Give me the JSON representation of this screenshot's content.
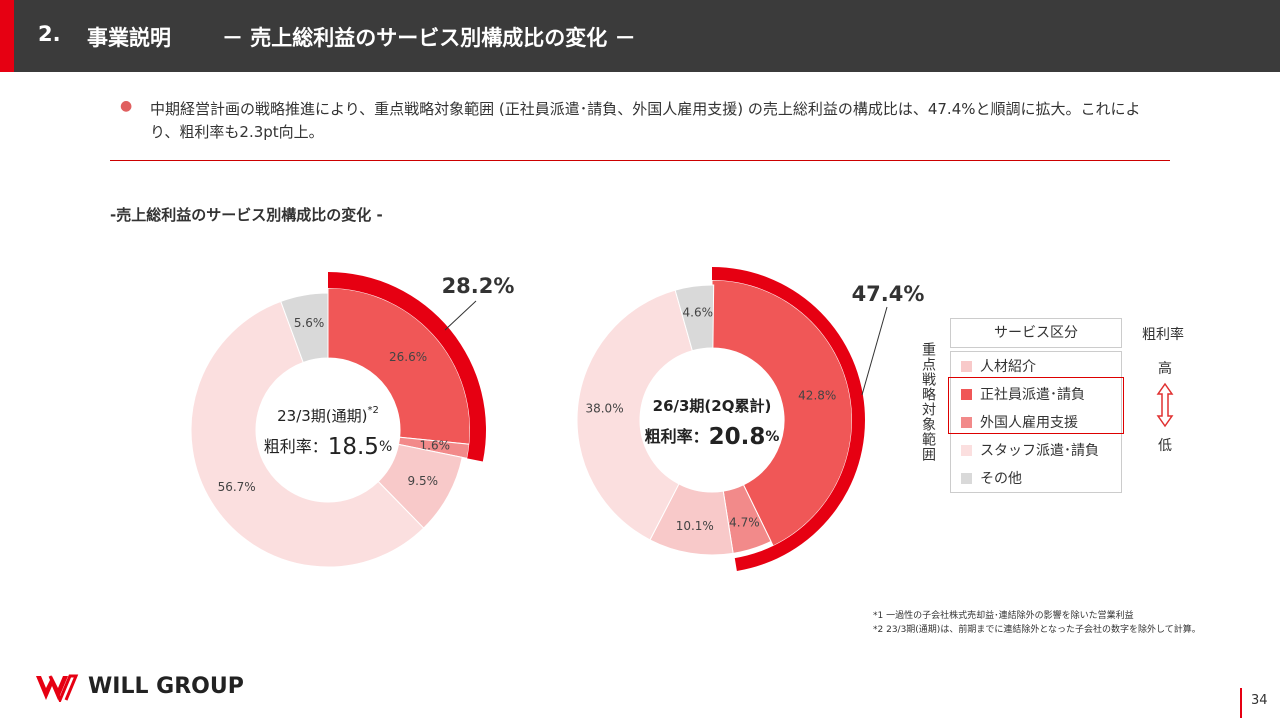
{
  "header": {
    "number": "2.",
    "title": "事業説明",
    "subtitle": "－ 売上総利益のサービス別構成比の変化 －"
  },
  "bullet": "中期経営計画の戦略推進により、重点戦略対象範囲 (正社員派遣･請負、外国人雇用支援) の売上総利益の構成比は、47.4%と順調に拡大。これにより、粗利率も2.3pt向上。",
  "section_title": "-売上総利益のサービス別構成比の変化 -",
  "chart_data": [
    {
      "type": "donut",
      "period": "23/3期(通期)",
      "period_note": "*2",
      "margin_label": "粗利率：",
      "margin_value": "18.5",
      "margin_unit": "%",
      "values": [
        26.6,
        1.6,
        9.5,
        56.7,
        5.6
      ],
      "value_labels": [
        "26.6%",
        "1.6%",
        "9.5%",
        "56.7%",
        "5.6%"
      ],
      "colors": [
        "#f05757",
        "#f28a8a",
        "#f8c9c9",
        "#fbdfdf",
        "#d9d9d9"
      ],
      "focus_total": 28.2,
      "focus_label": "28.2%",
      "focus_color": "#e60012"
    },
    {
      "type": "donut",
      "period": "26/3期(2Q累計)",
      "margin_label": "粗利率：",
      "margin_value": "20.8",
      "margin_unit": "%",
      "values": [
        42.8,
        4.7,
        10.1,
        38.0,
        4.6
      ],
      "value_labels": [
        "42.8%",
        "4.7%",
        "10.1%",
        "38.0%",
        "4.6%"
      ],
      "colors": [
        "#f05757",
        "#f28a8a",
        "#f8c9c9",
        "#fbdfdf",
        "#d9d9d9"
      ],
      "focus_total": 47.4,
      "focus_label": "47.4%",
      "focus_color": "#e60012"
    }
  ],
  "legend": {
    "header": "サービス区分",
    "rate_header": "粗利率",
    "high": "高",
    "low": "低",
    "side_label": "重点戦略対象範囲",
    "items": [
      {
        "name": "人材紹介",
        "color": "#f8c9c9"
      },
      {
        "name": "正社員派遣･請負",
        "color": "#f05757"
      },
      {
        "name": "外国人雇用支援",
        "color": "#f28a8a"
      },
      {
        "name": "スタッフ派遣･請負",
        "color": "#fbdfdf"
      },
      {
        "name": "その他",
        "color": "#d9d9d9"
      }
    ]
  },
  "footnotes": [
    "*1 一過性の子会社株式売却益･連結除外の影響を除いた営業利益",
    "*2 23/3期(通期)は、前期までに連結除外となった子会社の数字を除外して計算。"
  ],
  "logo": "WILL GROUP",
  "page_number": "34"
}
